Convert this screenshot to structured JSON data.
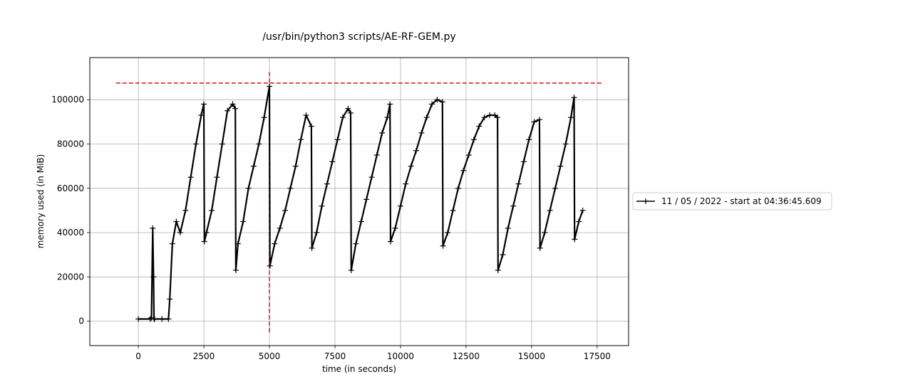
{
  "chart_data": {
    "type": "line",
    "title": "/usr/bin/python3 scripts/AE-RF-GEM.py",
    "xlabel": "time (in seconds)",
    "ylabel": "memory used (in MiB)",
    "xlim": [
      -1850,
      18700
    ],
    "ylim": [
      -11000,
      119000
    ],
    "xticks": [
      0,
      2500,
      5000,
      7500,
      10000,
      12500,
      15000,
      17500
    ],
    "yticks": [
      0,
      20000,
      40000,
      60000,
      80000,
      100000
    ],
    "xtick_labels": [
      "0",
      "2500",
      "5000",
      "7500",
      "10000",
      "12500",
      "15000",
      "17500"
    ],
    "ytick_labels": [
      "0",
      "20000",
      "40000",
      "60000",
      "80000",
      "100000"
    ],
    "grid": true,
    "legend_position": "right-outside",
    "colors": {
      "series": "#000000",
      "peak_marker": "#d62728"
    },
    "series": [
      {
        "name": "11 / 05 / 2022 - start at 04:36:45.609",
        "style": "solid line with + markers",
        "x": [
          0,
          450,
          500,
          550,
          580,
          600,
          620,
          900,
          1150,
          1200,
          1300,
          1450,
          1600,
          1800,
          2000,
          2200,
          2400,
          2500,
          2520,
          2600,
          2800,
          3000,
          3200,
          3400,
          3600,
          3700,
          3720,
          3800,
          4000,
          4200,
          4400,
          4600,
          4800,
          5000,
          5020,
          5200,
          5400,
          5600,
          5800,
          6000,
          6200,
          6400,
          6600,
          6620,
          6800,
          7000,
          7200,
          7400,
          7600,
          7800,
          8000,
          8100,
          8120,
          8300,
          8500,
          8700,
          8900,
          9100,
          9300,
          9500,
          9600,
          9620,
          9800,
          10000,
          10200,
          10400,
          10600,
          10800,
          11000,
          11200,
          11400,
          11600,
          11620,
          11800,
          12000,
          12200,
          12400,
          12600,
          12800,
          13000,
          13200,
          13400,
          13600,
          13700,
          13720,
          13900,
          14100,
          14300,
          14500,
          14700,
          14900,
          15100,
          15300,
          15320,
          15500,
          15700,
          15900,
          16100,
          16300,
          16500,
          16620,
          16640,
          16800,
          16950
        ],
        "y": [
          1000,
          1000,
          1500,
          42000,
          20000,
          1000,
          1000,
          1000,
          1000,
          10000,
          35000,
          45000,
          40000,
          50000,
          65000,
          80000,
          93000,
          98000,
          36000,
          40000,
          50000,
          65000,
          80000,
          95000,
          98000,
          96000,
          23000,
          35000,
          45000,
          60000,
          70000,
          80000,
          92000,
          106000,
          25000,
          35000,
          42000,
          50000,
          60000,
          70000,
          82000,
          93000,
          88000,
          33000,
          40000,
          52000,
          62000,
          72000,
          82000,
          92000,
          96000,
          94000,
          23000,
          35000,
          45000,
          55000,
          65000,
          75000,
          85000,
          92000,
          98000,
          36000,
          42000,
          52000,
          62000,
          70000,
          77000,
          85000,
          92000,
          98000,
          100000,
          99000,
          34000,
          40000,
          50000,
          60000,
          68000,
          75000,
          82000,
          88000,
          92000,
          93000,
          93000,
          92000,
          23000,
          30000,
          42000,
          52000,
          62000,
          72000,
          82000,
          90000,
          91000,
          33000,
          40000,
          50000,
          60000,
          70000,
          80000,
          92000,
          101000,
          37000,
          45000,
          50000
        ]
      }
    ],
    "annotations": [
      {
        "type": "hline",
        "y": 107500,
        "x_from": -850,
        "x_to": 17750,
        "style": "red dashed"
      },
      {
        "type": "vline",
        "x": 5000,
        "y_from": -5000,
        "y_to": 113000,
        "style": "red dashed"
      }
    ]
  }
}
